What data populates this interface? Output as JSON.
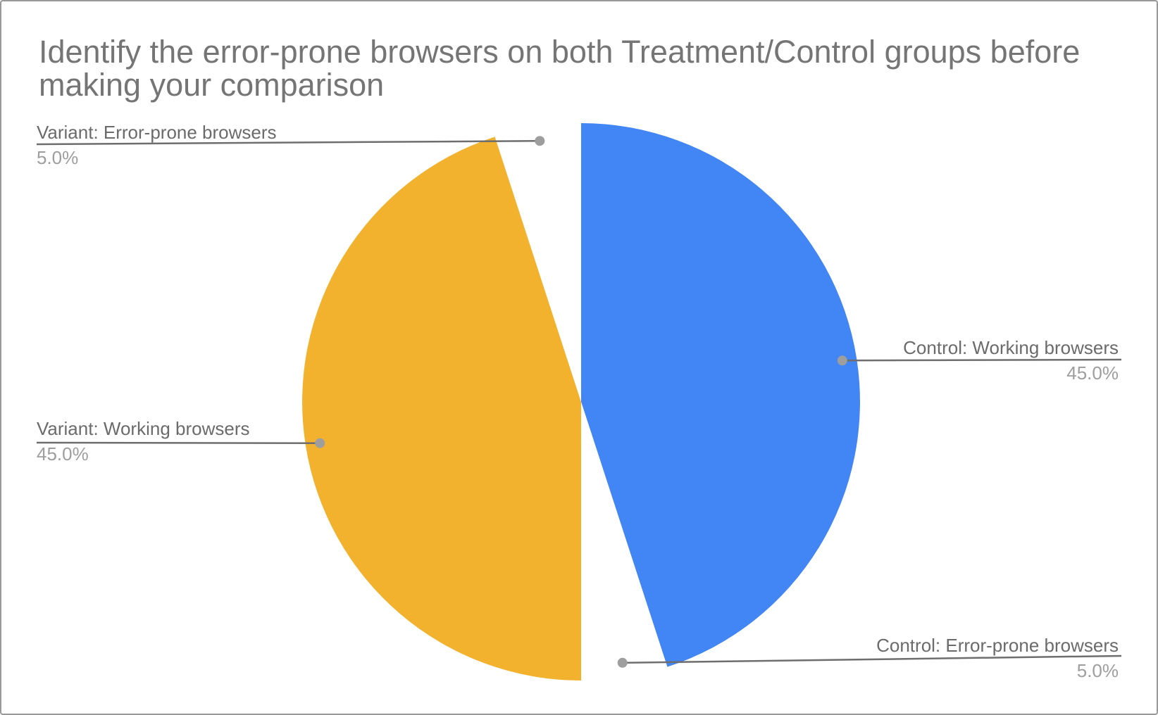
{
  "chart_data": {
    "type": "pie",
    "title": "Identify the error-prone browsers on both Treatment/Control groups before making your comparison",
    "title_color": "#757575",
    "legend": "none",
    "label_style": "outside-callouts-with-leader-lines",
    "start_angle_deg": 0,
    "direction": "clockwise",
    "slices": [
      {
        "label": "Control: Working browsers",
        "value": 45.0,
        "pct": "45.0%",
        "color": "#4285F4"
      },
      {
        "label": "Control: Error-prone browsers",
        "value": 5.0,
        "pct": "5.0%",
        "color": "#FFFFFF"
      },
      {
        "label": "Variant: Working browsers",
        "value": 45.0,
        "pct": "45.0%",
        "color": "#F2B22E"
      },
      {
        "label": "Variant: Error-prone browsers",
        "value": 5.0,
        "pct": "5.0%",
        "color": "#FFFFFF"
      }
    ],
    "callout_colors": {
      "label_text": "#6b6b6b",
      "percent_text": "#9e9e9e",
      "leader_line": "#6e6e6e",
      "leader_dot": "#9e9e9e"
    },
    "frame_border_color": "#999999"
  }
}
